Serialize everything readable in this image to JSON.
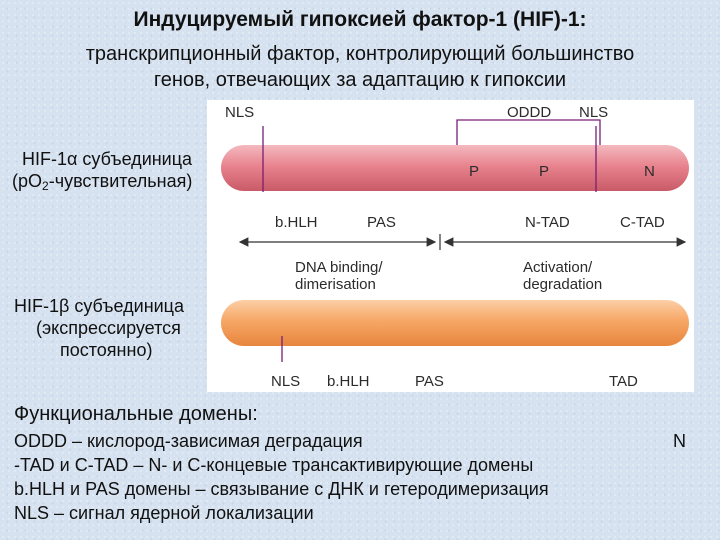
{
  "title": {
    "line1": "Индуцируемый гипоксией фактор-1 (HIF)-1:",
    "line2a": "транскрипционный фактор, контролирующий большинство",
    "line2b": "генов, отвечающих за адаптацию к гипоксии"
  },
  "alpha": {
    "label_line1": "HIF-1α субъединица",
    "label_line2_pre": "(pO",
    "label_line2_sub": "2",
    "label_line2_post": "-чувствительная)"
  },
  "beta": {
    "label_line1": "HIF-1β субъединица",
    "label_line2": "(экспрессируется",
    "label_line3": "постоянно)"
  },
  "figure": {
    "alpha_top": {
      "nls": "NLS",
      "oddd": "ODDD",
      "nls2": "NLS"
    },
    "alpha_inside": {
      "p1": "P",
      "p2": "P",
      "n": "N"
    },
    "alpha_bottom": {
      "bhlh": "b.HLH",
      "pas": "PAS",
      "ntad": "N-TAD",
      "ctad": "C-TAD"
    },
    "middle": {
      "left1": "DNA binding/",
      "left2": "dimerisation",
      "right1": "Activation/",
      "right2": "degradation"
    },
    "beta_bottom": {
      "nls": "NLS",
      "bhlh": "b.HLH",
      "pas": "PAS",
      "tad": "TAD"
    }
  },
  "colors": {
    "alpha_bar": "#e8848f",
    "beta_bar": "#f7a766",
    "marker": "#7a1d78"
  },
  "legend": {
    "heading": "Функциональные домены:",
    "line1_term": "ODDD",
    "line1_def": " – кислород-зависимая деградация",
    "line1_tail": "N",
    "line2": "-TAD и C-TAD – N- и C-концевые трансактивирующие домены",
    "line3": "b.HLH и PAS домены – связывание с ДНК и гетеродимеризация",
    "line4": "NLS – сигнал ядерной локализации"
  }
}
